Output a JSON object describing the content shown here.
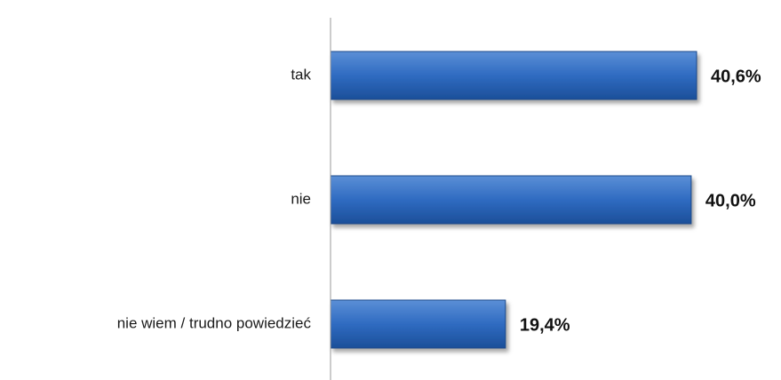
{
  "chart_data": {
    "type": "bar",
    "orientation": "horizontal",
    "categories": [
      "tak",
      "nie",
      "nie wiem / trudno powiedzieć"
    ],
    "values": [
      40.6,
      40.0,
      19.4
    ],
    "value_labels": [
      "40,6%",
      "40,0%",
      "19,4%"
    ],
    "unit": "%",
    "title": "",
    "xlabel": "",
    "ylabel": "",
    "xlim": [
      0,
      40.6
    ],
    "grid": false,
    "legend": "none",
    "colors": {
      "bar_top": "#5b8fd6",
      "bar_mid": "#2f6bc1",
      "bar_bottom": "#1c4f99",
      "bar_edge": "#1d4a8a",
      "axis": "#9a9a9a"
    }
  }
}
